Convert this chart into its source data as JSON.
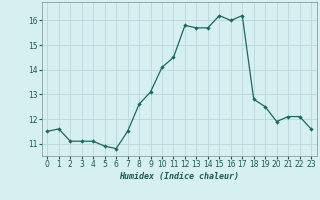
{
  "x": [
    0,
    1,
    2,
    3,
    4,
    5,
    6,
    7,
    8,
    9,
    10,
    11,
    12,
    13,
    14,
    15,
    16,
    17,
    18,
    19,
    20,
    21,
    22,
    23
  ],
  "y": [
    11.5,
    11.6,
    11.1,
    11.1,
    11.1,
    10.9,
    10.8,
    11.5,
    12.6,
    13.1,
    14.1,
    14.5,
    15.8,
    15.7,
    15.7,
    16.2,
    16.0,
    16.2,
    12.8,
    12.5,
    11.9,
    12.1,
    12.1,
    11.6
  ],
  "xlabel": "Humidex (Indice chaleur)",
  "xlim": [
    -0.5,
    23.5
  ],
  "ylim": [
    10.5,
    16.75
  ],
  "yticks": [
    11,
    12,
    13,
    14,
    15,
    16
  ],
  "xticks": [
    0,
    1,
    2,
    3,
    4,
    5,
    6,
    7,
    8,
    9,
    10,
    11,
    12,
    13,
    14,
    15,
    16,
    17,
    18,
    19,
    20,
    21,
    22,
    23
  ],
  "line_color": "#1a6b5a",
  "marker": "D",
  "marker_size": 2.2,
  "bg_color": "#d6f0ef",
  "grid_color": "#b8d8d6",
  "xlabel_fontsize": 6.0,
  "tick_fontsize": 5.5
}
